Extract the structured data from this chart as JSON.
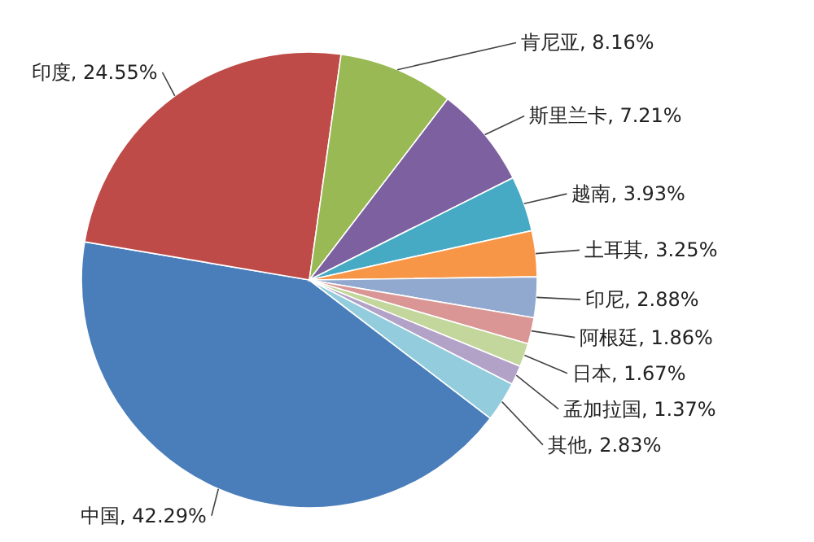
{
  "chart_data": {
    "type": "pie",
    "categories": [
      "中国",
      "印度",
      "肯尼亚",
      "斯里兰卡",
      "越南",
      "土耳其",
      "印尼",
      "阿根廷",
      "日本",
      "孟加拉国",
      "其他"
    ],
    "values": [
      42.29,
      24.55,
      8.16,
      7.21,
      3.93,
      3.25,
      2.88,
      1.86,
      1.67,
      1.37,
      2.83
    ],
    "colors": [
      "#4a7ebb",
      "#be4b48",
      "#98b954",
      "#7d60a0",
      "#46aac5",
      "#f79646",
      "#92a9cf",
      "#d99694",
      "#c3d69b",
      "#b3a2c7",
      "#93cddd"
    ],
    "value_labels": [
      "42.29%",
      "24.55%",
      "8.16%",
      "7.21%",
      "3.93%",
      "3.25%",
      "2.88%",
      "1.86%",
      "1.67%",
      "1.37%",
      "2.83%"
    ]
  }
}
